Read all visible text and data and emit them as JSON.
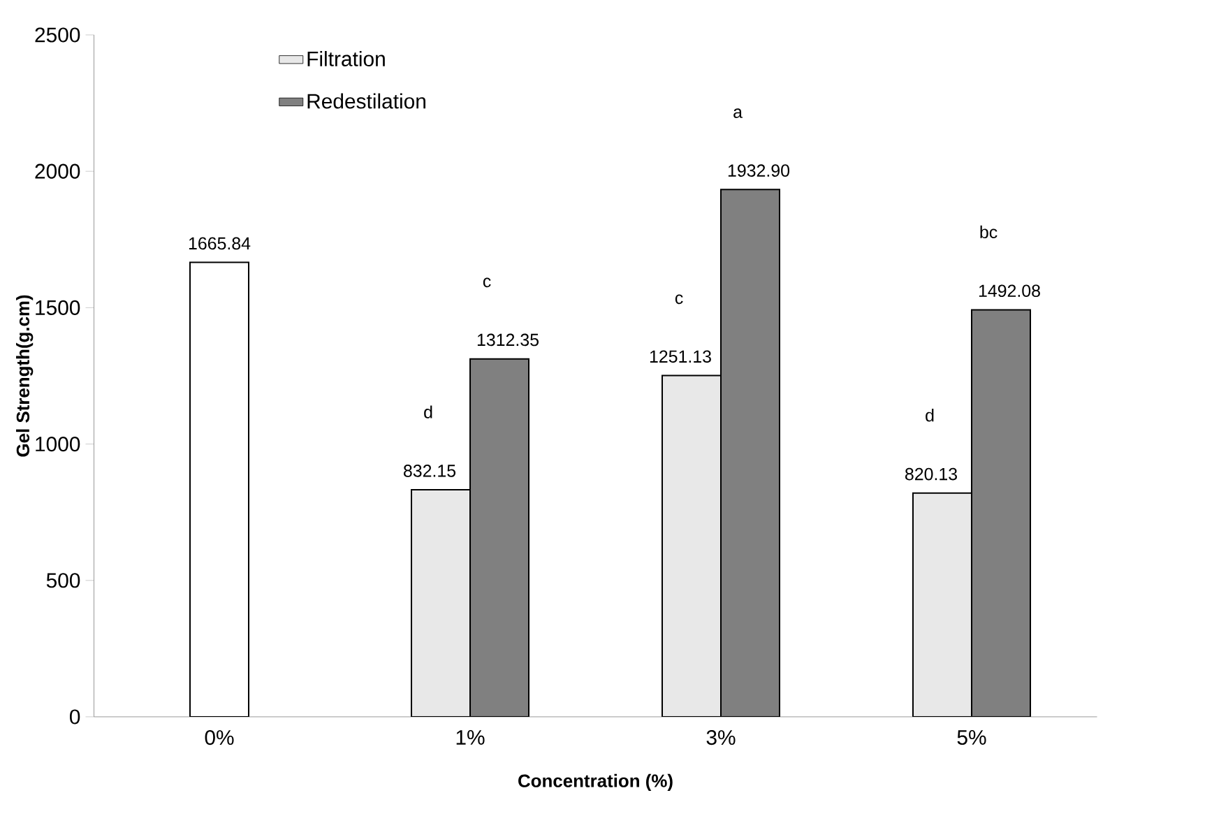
{
  "chart_data": {
    "type": "bar",
    "xlabel": "Concentration (%)",
    "ylabel": "Gel Strength(g.cm)",
    "categories": [
      "0%",
      "1%",
      "3%",
      "5%"
    ],
    "series": [
      {
        "color": "#ffffff",
        "values": [
          1665.84,
          null,
          null,
          null
        ],
        "value_labels": [
          "1665.84",
          null,
          null,
          null
        ]
      },
      {
        "name": "Filtration",
        "color": "#e8e8e8",
        "values": [
          null,
          832.15,
          1251.13,
          820.13
        ],
        "value_labels": [
          null,
          "832.15",
          "1251.13",
          "820.13"
        ]
      },
      {
        "name": "Redestilation",
        "color": "#808080",
        "values": [
          null,
          1312.35,
          1932.9,
          1492.08
        ],
        "value_labels": [
          null,
          "1312.35",
          "1932.90",
          "1492.08"
        ]
      }
    ],
    "annotations": [
      "d",
      "c",
      "c",
      "a",
      "d",
      "bc"
    ],
    "ylim": [
      0,
      2500
    ],
    "yticks": [
      0,
      500,
      1000,
      1500,
      2000,
      2500
    ],
    "grid": false,
    "legend": "top left"
  }
}
